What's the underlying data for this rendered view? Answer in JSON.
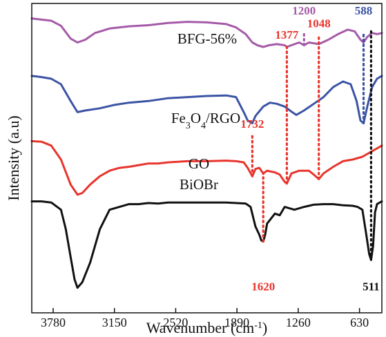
{
  "chart_data": {
    "type": "line",
    "title": "",
    "xlabel": "Wavenumber (cm",
    "xlabel_superscript": "-1",
    "xlabel_suffix": ")",
    "ylabel": "Intensity (a.u)",
    "x_reversed": true,
    "xlim": [
      4000,
      400
    ],
    "xticks": [
      "3780",
      "3150",
      "2520",
      "1890",
      "1260",
      "630"
    ],
    "grid": false,
    "legend": "none",
    "series": [
      {
        "name": "BFG-56%",
        "name_parts": [
          {
            "t": "BFG-56%",
            "s": "normal"
          }
        ],
        "color": "#a55aa8",
        "offset": 3.3,
        "points": [
          [
            4000,
            0.98
          ],
          [
            3900,
            0.96
          ],
          [
            3800,
            0.94
          ],
          [
            3700,
            0.85
          ],
          [
            3600,
            0.62
          ],
          [
            3530,
            0.55
          ],
          [
            3450,
            0.6
          ],
          [
            3350,
            0.72
          ],
          [
            3200,
            0.8
          ],
          [
            3000,
            0.84
          ],
          [
            2800,
            0.86
          ],
          [
            2600,
            0.9
          ],
          [
            2400,
            0.92
          ],
          [
            2200,
            0.91
          ],
          [
            2000,
            0.88
          ],
          [
            1900,
            0.82
          ],
          [
            1800,
            0.7
          ],
          [
            1732,
            0.55
          ],
          [
            1680,
            0.5
          ],
          [
            1620,
            0.47
          ],
          [
            1560,
            0.5
          ],
          [
            1480,
            0.52
          ],
          [
            1400,
            0.5
          ],
          [
            1377,
            0.47
          ],
          [
            1330,
            0.5
          ],
          [
            1250,
            0.55
          ],
          [
            1200,
            0.5
          ],
          [
            1150,
            0.55
          ],
          [
            1048,
            0.52
          ],
          [
            950,
            0.6
          ],
          [
            850,
            0.7
          ],
          [
            750,
            0.78
          ],
          [
            680,
            0.75
          ],
          [
            620,
            0.6
          ],
          [
            588,
            0.55
          ],
          [
            550,
            0.65
          ],
          [
            500,
            0.72
          ],
          [
            450,
            0.7
          ],
          [
            400,
            0.72
          ]
        ]
      },
      {
        "name": "Fe3O4/RGO",
        "name_parts": [
          {
            "t": "Fe",
            "s": "normal"
          },
          {
            "t": "3",
            "s": "sub"
          },
          {
            "t": "O",
            "s": "normal"
          },
          {
            "t": "4",
            "s": "sub"
          },
          {
            "t": "/RGO",
            "s": "normal"
          }
        ],
        "color": "#3b53a5",
        "offset": 2.25,
        "points": [
          [
            4000,
            1.0
          ],
          [
            3900,
            0.98
          ],
          [
            3800,
            0.95
          ],
          [
            3700,
            0.85
          ],
          [
            3600,
            0.55
          ],
          [
            3530,
            0.35
          ],
          [
            3450,
            0.38
          ],
          [
            3300,
            0.42
          ],
          [
            3150,
            0.48
          ],
          [
            3000,
            0.52
          ],
          [
            2800,
            0.55
          ],
          [
            2600,
            0.6
          ],
          [
            2400,
            0.62
          ],
          [
            2200,
            0.64
          ],
          [
            2000,
            0.65
          ],
          [
            1900,
            0.62
          ],
          [
            1820,
            0.35
          ],
          [
            1780,
            0.2
          ],
          [
            1732,
            0.15
          ],
          [
            1700,
            0.28
          ],
          [
            1620,
            0.45
          ],
          [
            1550,
            0.52
          ],
          [
            1480,
            0.5
          ],
          [
            1400,
            0.45
          ],
          [
            1330,
            0.36
          ],
          [
            1280,
            0.3
          ],
          [
            1200,
            0.38
          ],
          [
            1100,
            0.5
          ],
          [
            1000,
            0.62
          ],
          [
            900,
            0.8
          ],
          [
            800,
            0.9
          ],
          [
            720,
            0.85
          ],
          [
            660,
            0.55
          ],
          [
            620,
            0.2
          ],
          [
            588,
            0.15
          ],
          [
            550,
            0.45
          ],
          [
            500,
            0.8
          ],
          [
            450,
            0.95
          ],
          [
            400,
            1.0
          ]
        ]
      },
      {
        "name": "GO",
        "name_parts": [
          {
            "t": "GO",
            "s": "normal"
          }
        ],
        "color": "#e8342c",
        "offset": 1.0,
        "points": [
          [
            4000,
            1.08
          ],
          [
            3900,
            1.07
          ],
          [
            3800,
            1.0
          ],
          [
            3700,
            0.75
          ],
          [
            3600,
            0.3
          ],
          [
            3530,
            0.12
          ],
          [
            3480,
            0.15
          ],
          [
            3400,
            0.3
          ],
          [
            3300,
            0.45
          ],
          [
            3200,
            0.55
          ],
          [
            3100,
            0.6
          ],
          [
            3000,
            0.62
          ],
          [
            2900,
            0.65
          ],
          [
            2800,
            0.68
          ],
          [
            2700,
            0.68
          ],
          [
            2600,
            0.7
          ],
          [
            2400,
            0.72
          ],
          [
            2200,
            0.72
          ],
          [
            2000,
            0.73
          ],
          [
            1900,
            0.72
          ],
          [
            1820,
            0.7
          ],
          [
            1780,
            0.6
          ],
          [
            1732,
            0.45
          ],
          [
            1700,
            0.58
          ],
          [
            1660,
            0.6
          ],
          [
            1620,
            0.5
          ],
          [
            1580,
            0.55
          ],
          [
            1500,
            0.52
          ],
          [
            1450,
            0.48
          ],
          [
            1400,
            0.35
          ],
          [
            1377,
            0.32
          ],
          [
            1330,
            0.5
          ],
          [
            1250,
            0.55
          ],
          [
            1150,
            0.55
          ],
          [
            1100,
            0.48
          ],
          [
            1048,
            0.4
          ],
          [
            1000,
            0.5
          ],
          [
            900,
            0.62
          ],
          [
            800,
            0.72
          ],
          [
            700,
            0.75
          ],
          [
            600,
            0.8
          ],
          [
            500,
            0.9
          ],
          [
            400,
            1.0
          ]
        ]
      },
      {
        "name": "BiOBr",
        "name_parts": [
          {
            "t": "BiOBr",
            "s": "normal"
          }
        ],
        "color": "#111111",
        "offset": 0.0,
        "points": [
          [
            4000,
            1.0
          ],
          [
            3900,
            1.0
          ],
          [
            3800,
            0.98
          ],
          [
            3700,
            0.85
          ],
          [
            3650,
            0.5
          ],
          [
            3600,
            0.0
          ],
          [
            3560,
            -0.4
          ],
          [
            3530,
            -0.55
          ],
          [
            3480,
            -0.45
          ],
          [
            3400,
            -0.1
          ],
          [
            3300,
            0.5
          ],
          [
            3200,
            0.85
          ],
          [
            3000,
            0.95
          ],
          [
            2900,
            0.95
          ],
          [
            2800,
            0.97
          ],
          [
            2700,
            0.96
          ],
          [
            2600,
            0.98
          ],
          [
            2400,
            0.98
          ],
          [
            2200,
            0.98
          ],
          [
            2000,
            0.98
          ],
          [
            1900,
            0.97
          ],
          [
            1800,
            0.96
          ],
          [
            1750,
            0.9
          ],
          [
            1700,
            0.55
          ],
          [
            1660,
            0.4
          ],
          [
            1640,
            0.3
          ],
          [
            1620,
            0.28
          ],
          [
            1600,
            0.4
          ],
          [
            1580,
            0.6
          ],
          [
            1500,
            0.78
          ],
          [
            1450,
            0.75
          ],
          [
            1400,
            0.9
          ],
          [
            1300,
            0.85
          ],
          [
            1200,
            0.9
          ],
          [
            1100,
            0.94
          ],
          [
            1000,
            0.95
          ],
          [
            900,
            0.95
          ],
          [
            800,
            0.93
          ],
          [
            700,
            0.92
          ],
          [
            650,
            0.9
          ],
          [
            600,
            0.85
          ],
          [
            560,
            0.4
          ],
          [
            530,
            0.05
          ],
          [
            511,
            -0.05
          ],
          [
            490,
            0.2
          ],
          [
            470,
            0.8
          ],
          [
            450,
            0.95
          ],
          [
            400,
            1.0
          ]
        ]
      }
    ],
    "annotations": [
      {
        "label": "1200",
        "color": "#a55aa8",
        "x": 1200,
        "from_series": 0,
        "line_top": 4.0,
        "label_y": 4.35
      },
      {
        "label": "588",
        "color": "#3b53a5",
        "x": 588,
        "from_series": 1,
        "line_top": 4.0,
        "label_y": 4.35
      },
      {
        "label": "1377",
        "color": "#e8342c",
        "x": 1377,
        "from_series": 2,
        "line_top": 3.8,
        "label_y": 3.92
      },
      {
        "label": "1048",
        "color": "#e8342c",
        "x": 1048,
        "from_series": 2,
        "line_top": 4.0,
        "label_y": 4.12
      },
      {
        "label": "1732",
        "color": "#e8342c",
        "x": 1732,
        "from_series": 2,
        "line_top": 2.2,
        "label_y": 2.32
      },
      {
        "label": "1620",
        "color": "#e8342c",
        "x": 1620,
        "from_series": 3,
        "line_top": 1.5,
        "label_y": -0.6
      },
      {
        "label": "511",
        "color": "#111111",
        "x": 511,
        "from_series": 3,
        "line_top": 4.1,
        "label_y": -0.6
      }
    ]
  }
}
